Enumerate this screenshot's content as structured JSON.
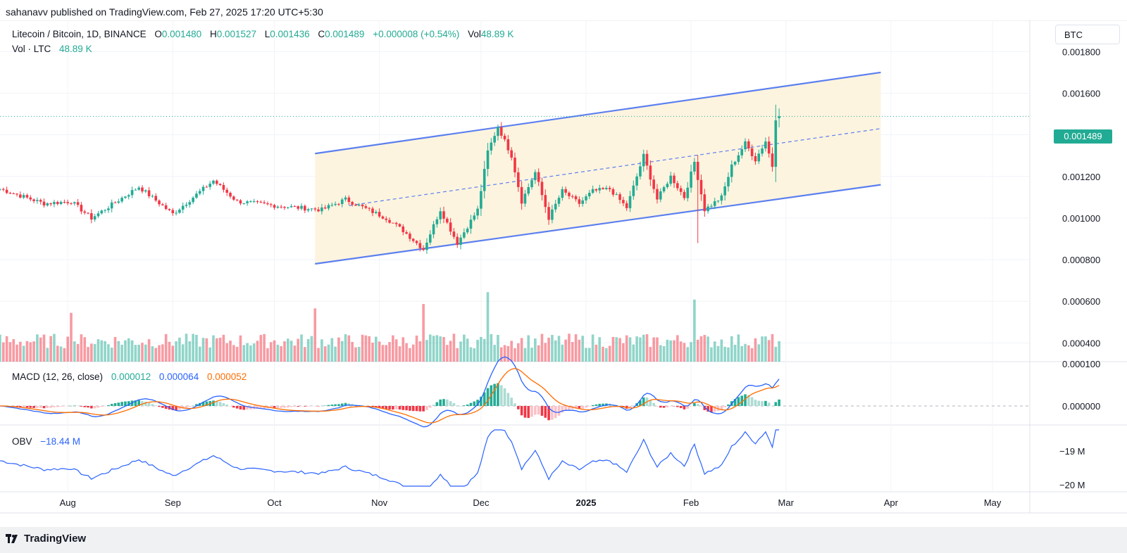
{
  "publisher_line": "sahanavv published on TradingView.com, Feb 27, 2025 17:20 UTC+5:30",
  "legend": {
    "symbol": "Litecoin / Bitcoin, 1D, BINANCE",
    "o_label": "O",
    "o_value": "0.001480",
    "h_label": "H",
    "h_value": "0.001527",
    "l_label": "L",
    "l_value": "0.001436",
    "c_label": "C",
    "c_value": "0.001489",
    "change": "+0.000008 (+0.54%)",
    "vol_label": "Vol",
    "vol_value": "48.89 K",
    "vol_line_label": "Vol · LTC",
    "vol_line_value": "48.89 K"
  },
  "macd_legend": {
    "label": "MACD (12, 26, close)",
    "hist": "0.000012",
    "macd": "0.000064",
    "signal": "0.000052"
  },
  "obv_legend": {
    "label": "OBV",
    "value": "−18.44 M"
  },
  "unit_label": "BTC",
  "current_price_label": "0.001489",
  "footer_brand": "TradingView",
  "colors": {
    "up": "#22ab94",
    "down": "#f23645",
    "channel": "#5b7ff0",
    "channel_fill": "#fdf3dc",
    "macd": "#2962ff",
    "signal": "#ff6d00",
    "obv": "#2962ff"
  },
  "chart_data": {
    "type": "candlestick",
    "symbol": "Litecoin / Bitcoin",
    "interval": "1D",
    "exchange": "BINANCE",
    "y_unit": "BTC",
    "price_ticks": [
      "0.001800",
      "0.001600",
      "0.001400",
      "0.001200",
      "0.001000",
      "0.000800",
      "0.000600",
      "0.000400"
    ],
    "price_range": [
      0.00031,
      0.00195
    ],
    "x_ticks": [
      "Aug",
      "Sep",
      "Oct",
      "Nov",
      "Dec",
      "2025",
      "Feb",
      "Mar",
      "Apr",
      "May"
    ],
    "x_tick_dates": [
      "2024-08-01",
      "2024-09-01",
      "2024-10-01",
      "2024-11-01",
      "2024-12-01",
      "2025-01-01",
      "2025-02-01",
      "2025-03-01",
      "2025-04-01",
      "2025-05-01"
    ],
    "date_range": [
      "2024-07-12",
      "2025-05-12"
    ],
    "last_date": "2025-02-27",
    "close_waypoints": [
      [
        "2024-07-12",
        0.00114
      ],
      [
        "2024-07-25",
        0.00107
      ],
      [
        "2024-08-02",
        0.00108
      ],
      [
        "2024-08-08",
        0.001
      ],
      [
        "2024-08-22",
        0.00115
      ],
      [
        "2024-09-01",
        0.00102
      ],
      [
        "2024-09-13",
        0.00118
      ],
      [
        "2024-09-20",
        0.00108
      ],
      [
        "2024-10-01",
        0.00106
      ],
      [
        "2024-10-15",
        0.00104
      ],
      [
        "2024-10-22",
        0.00109
      ],
      [
        "2024-11-03",
        0.001
      ],
      [
        "2024-11-08",
        0.00094
      ],
      [
        "2024-11-14",
        0.00085
      ],
      [
        "2024-11-19",
        0.00104
      ],
      [
        "2024-11-24",
        0.00088
      ],
      [
        "2024-11-30",
        0.00104
      ],
      [
        "2024-12-03",
        0.00132
      ],
      [
        "2024-12-06",
        0.00144
      ],
      [
        "2024-12-10",
        0.0013
      ],
      [
        "2024-12-13",
        0.00108
      ],
      [
        "2024-12-17",
        0.00122
      ],
      [
        "2024-12-21",
        0.001
      ],
      [
        "2024-12-25",
        0.00113
      ],
      [
        "2024-12-30",
        0.00107
      ],
      [
        "2025-01-03",
        0.00113
      ],
      [
        "2025-01-08",
        0.00114
      ],
      [
        "2025-01-13",
        0.00105
      ],
      [
        "2025-01-18",
        0.0013
      ],
      [
        "2025-01-22",
        0.00109
      ],
      [
        "2025-01-26",
        0.0012
      ],
      [
        "2025-01-30",
        0.0011
      ],
      [
        "2025-02-02",
        0.00127
      ],
      [
        "2025-02-05",
        0.00104
      ],
      [
        "2025-02-10",
        0.0011
      ],
      [
        "2025-02-13",
        0.00125
      ],
      [
        "2025-02-17",
        0.00136
      ],
      [
        "2025-02-20",
        0.00128
      ],
      [
        "2025-02-23",
        0.00137
      ],
      [
        "2025-02-25",
        0.00125
      ],
      [
        "2025-02-26",
        0.00148
      ],
      [
        "2025-02-27",
        0.001489
      ]
    ],
    "last_candle": {
      "open": 0.00148,
      "high": 0.001527,
      "low": 0.001436,
      "close": 0.001489
    },
    "channel": {
      "upper": [
        [
          "2024-10-13",
          0.00131
        ],
        [
          "2025-03-29",
          0.0017
        ]
      ],
      "lower": [
        [
          "2024-10-13",
          0.00078
        ],
        [
          "2025-03-29",
          0.00116
        ]
      ],
      "mid_dashed": [
        [
          "2024-10-23",
          0.00106
        ],
        [
          "2025-03-29",
          0.00143
        ]
      ]
    },
    "volume": {
      "label": "Vol · LTC",
      "last": "48.89 K",
      "spikes": [
        [
          "2024-08-02",
          0.0066
        ],
        [
          "2024-10-13",
          0.0072
        ],
        [
          "2024-11-14",
          0.0078
        ],
        [
          "2024-12-03",
          0.0094
        ],
        [
          "2025-02-02",
          0.0084
        ]
      ]
    },
    "macd": {
      "params": "12, 26, close",
      "histogram": 1.2e-05,
      "macd": 6.4e-05,
      "signal": 5.2e-05,
      "ticks": [
        "0.000100",
        "0.000000"
      ]
    },
    "obv": {
      "value": "−18.44 M",
      "ticks": [
        "−19 M",
        "−20 M"
      ]
    }
  }
}
